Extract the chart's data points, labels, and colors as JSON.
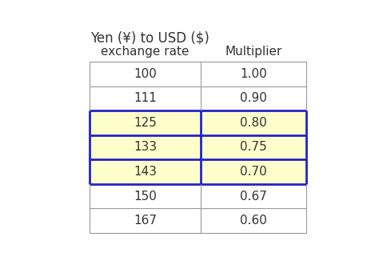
{
  "title_line1": "Yen (¥) to USD ($)",
  "title_line2": "exchange rate",
  "col2_header": "Multiplier",
  "rows": [
    {
      "yen": "100",
      "mult": "1.00",
      "highlight": false
    },
    {
      "yen": "111",
      "mult": "0.90",
      "highlight": false
    },
    {
      "yen": "125",
      "mult": "0.80",
      "highlight": true
    },
    {
      "yen": "133",
      "mult": "0.75",
      "highlight": true
    },
    {
      "yen": "143",
      "mult": "0.70",
      "highlight": true
    },
    {
      "yen": "150",
      "mult": "0.67",
      "highlight": false
    },
    {
      "yen": "167",
      "mult": "0.60",
      "highlight": false
    }
  ],
  "highlight_fill": "#FFFFCC",
  "highlight_border": "#2222CC",
  "normal_fill": "#FFFFFF",
  "normal_border": "#999999",
  "text_color": "#333333",
  "background_color": "#FFFFFF",
  "cell_fontsize": 11,
  "header_fontsize": 11,
  "title_fontsize": 12
}
